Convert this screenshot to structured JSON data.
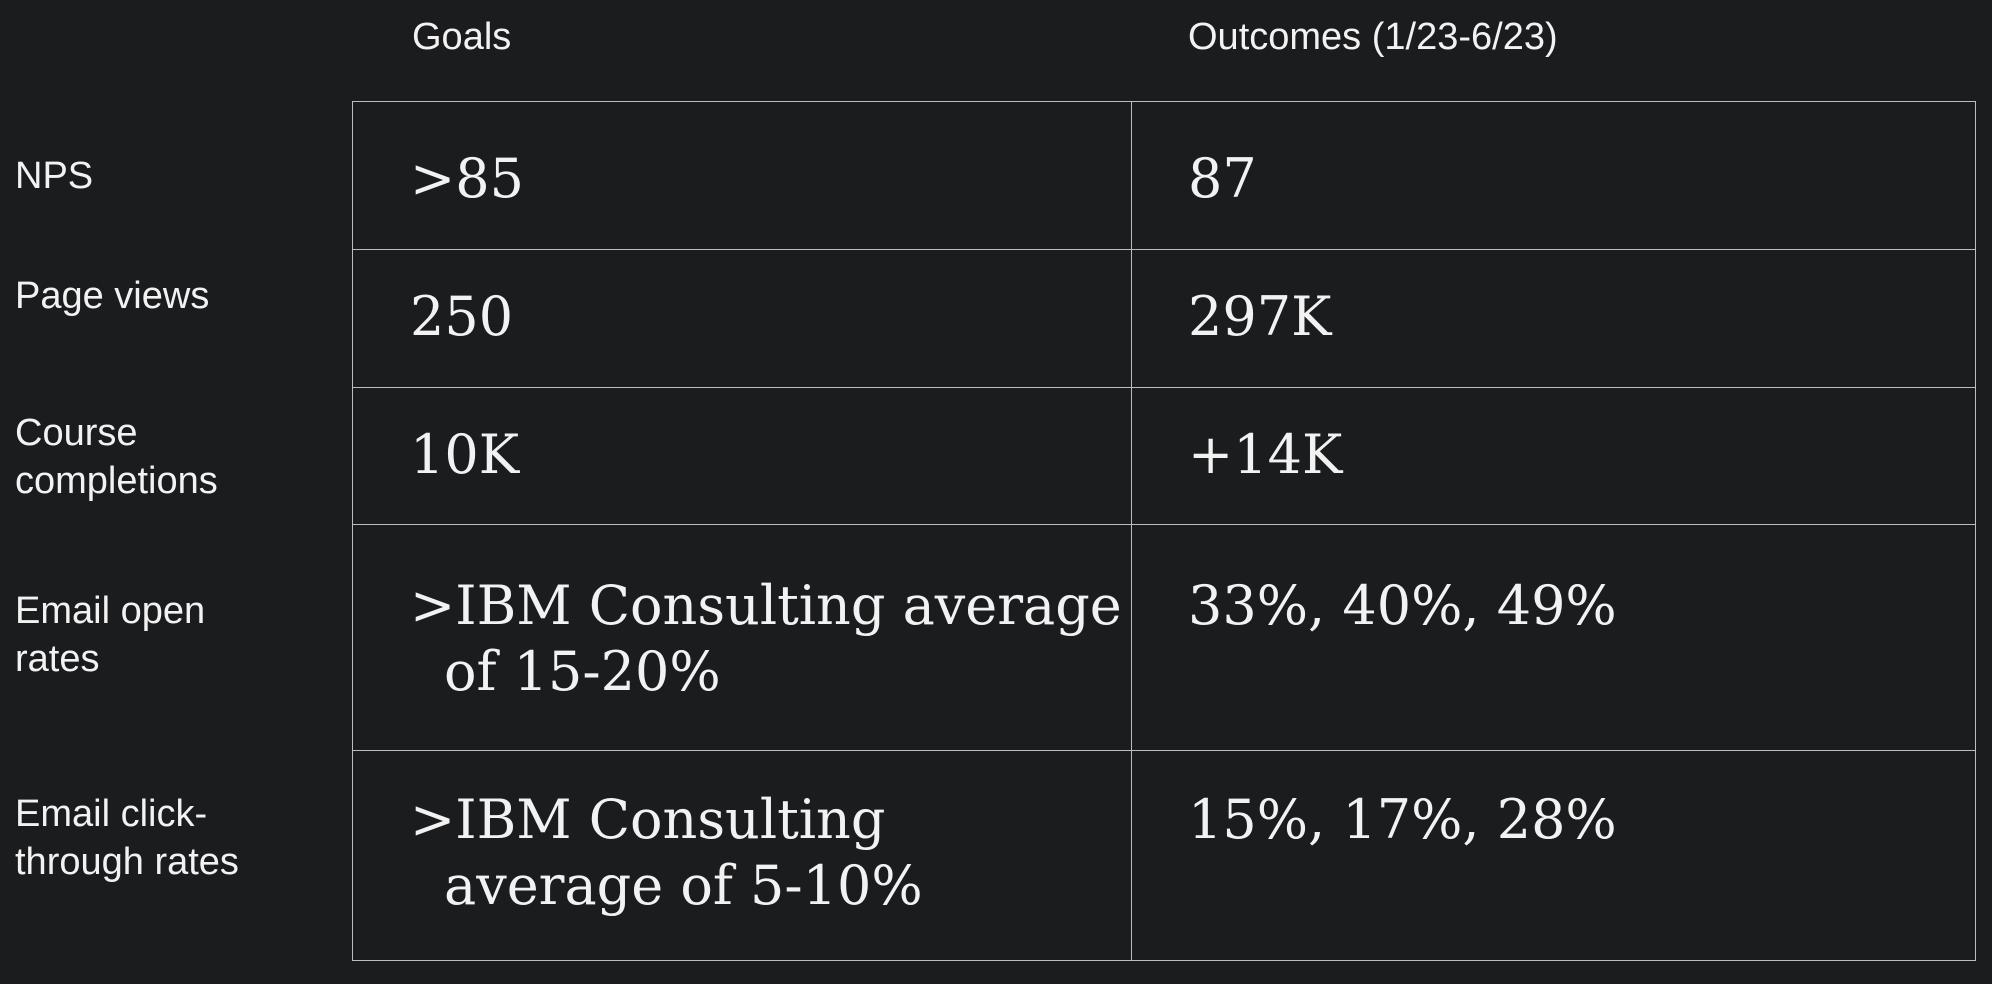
{
  "table": {
    "headers": {
      "goals": "Goals",
      "outcomes": "Outcomes (1/23-6/23)"
    },
    "rows": [
      {
        "label_lines": [
          "NPS"
        ],
        "goal_lines": [
          ">85"
        ],
        "outcome": "87"
      },
      {
        "label_lines": [
          "Page views"
        ],
        "goal_lines": [
          "250"
        ],
        "outcome": "297K"
      },
      {
        "label_lines": [
          "Course",
          "completions"
        ],
        "goal_lines": [
          "10K"
        ],
        "outcome": "+14K"
      },
      {
        "label_lines": [
          "Email open",
          "rates"
        ],
        "goal_lines": [
          ">IBM Consulting average",
          "of 15-20%"
        ],
        "outcome": "33%, 40%, 49%"
      },
      {
        "label_lines": [
          "Email click-",
          "through rates"
        ],
        "goal_lines": [
          ">IBM Consulting",
          "average of 5-10%"
        ],
        "outcome": "15%, 17%, 28%"
      }
    ]
  }
}
